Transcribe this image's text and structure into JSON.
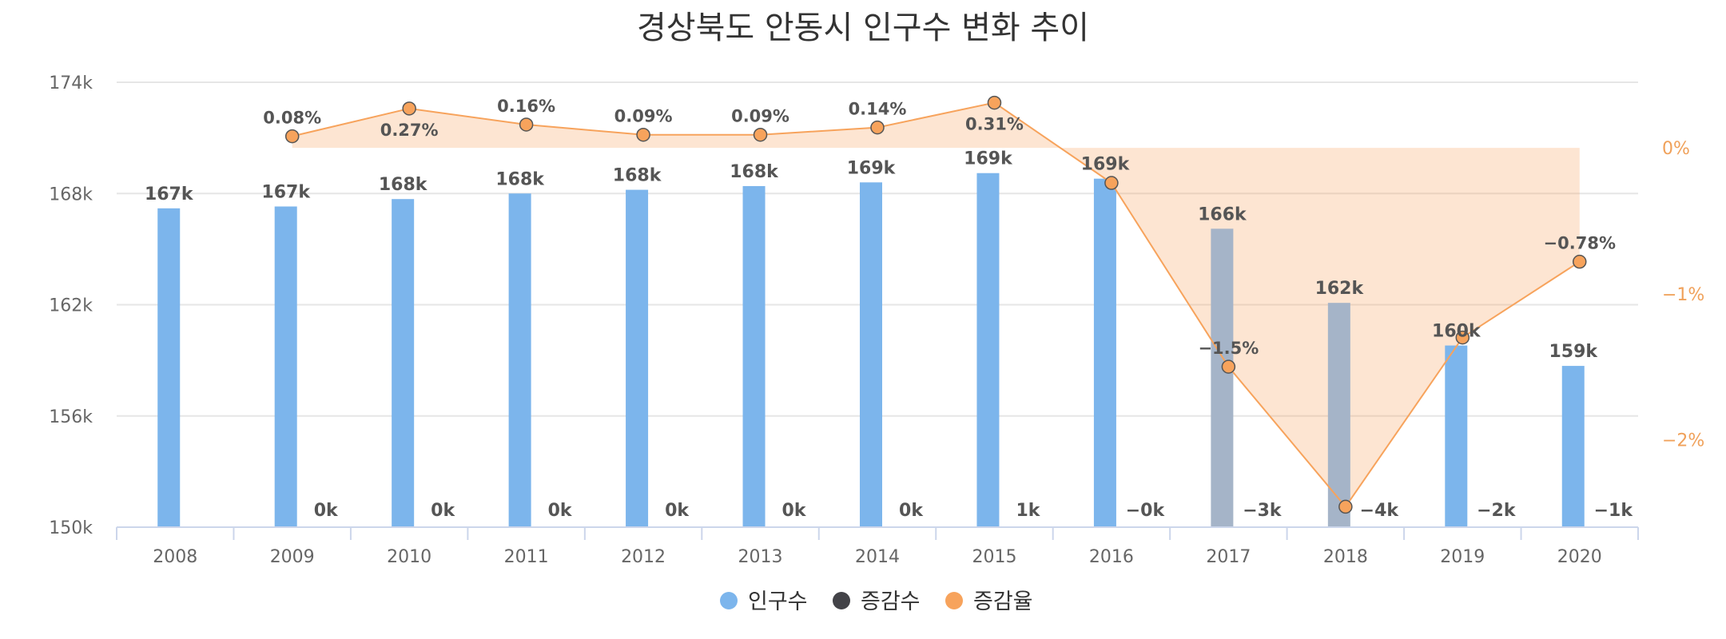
{
  "chart_data": {
    "type": "bar",
    "title": "경상북도 안동시 인구수 변화 추이",
    "categories": [
      "2008",
      "2009",
      "2010",
      "2011",
      "2012",
      "2013",
      "2014",
      "2015",
      "2016",
      "2017",
      "2018",
      "2019",
      "2020"
    ],
    "y_left": {
      "ticks": [
        "150k",
        "156k",
        "162k",
        "168k",
        "174k"
      ],
      "range": [
        150000,
        174000
      ]
    },
    "y_right": {
      "ticks": [
        "0%",
        "−1%",
        "−2%"
      ],
      "range": [
        -2.6,
        0.45
      ]
    },
    "series": [
      {
        "name": "인구수",
        "kind": "bar",
        "color": "#7cb5ec",
        "values": [
          167200,
          167300,
          167700,
          168000,
          168200,
          168400,
          168600,
          169100,
          168800,
          166100,
          162100,
          159800,
          158700
        ],
        "labels": [
          "167k",
          "167k",
          "168k",
          "168k",
          "168k",
          "168k",
          "169k",
          "169k",
          "169k",
          "166k",
          "162k",
          "160k",
          "159k"
        ]
      },
      {
        "name": "증감수",
        "kind": "bar",
        "color": "#434348",
        "values": [
          null,
          130,
          450,
          270,
          150,
          150,
          240,
          520,
          -400,
          -2500,
          -4000,
          -2300,
          -1200
        ],
        "labels": [
          "",
          "0k",
          "0k",
          "0k",
          "0k",
          "0k",
          "0k",
          "1k",
          "−0k",
          "−3k",
          "−4k",
          "−2k",
          "−1k"
        ]
      },
      {
        "name": "증감율",
        "kind": "area",
        "color": "#f7a35c",
        "values": [
          null,
          0.08,
          0.27,
          0.16,
          0.09,
          0.09,
          0.14,
          0.31,
          -0.24,
          -1.5,
          -2.46,
          -1.3,
          -0.78
        ],
        "labels": [
          "",
          "0.08%",
          "0.27%",
          "0.16%",
          "0.09%",
          "0.09%",
          "0.14%",
          "0.31%",
          "",
          "−1.5%",
          "",
          "",
          "−0.78%"
        ]
      }
    ],
    "legend": {
      "position": "bottom-center"
    },
    "grid": true
  },
  "legend_items": [
    {
      "label": "인구수",
      "color": "#7cb5ec"
    },
    {
      "label": "증감수",
      "color": "#434348"
    },
    {
      "label": "증감율",
      "color": "#f7a35c"
    }
  ]
}
